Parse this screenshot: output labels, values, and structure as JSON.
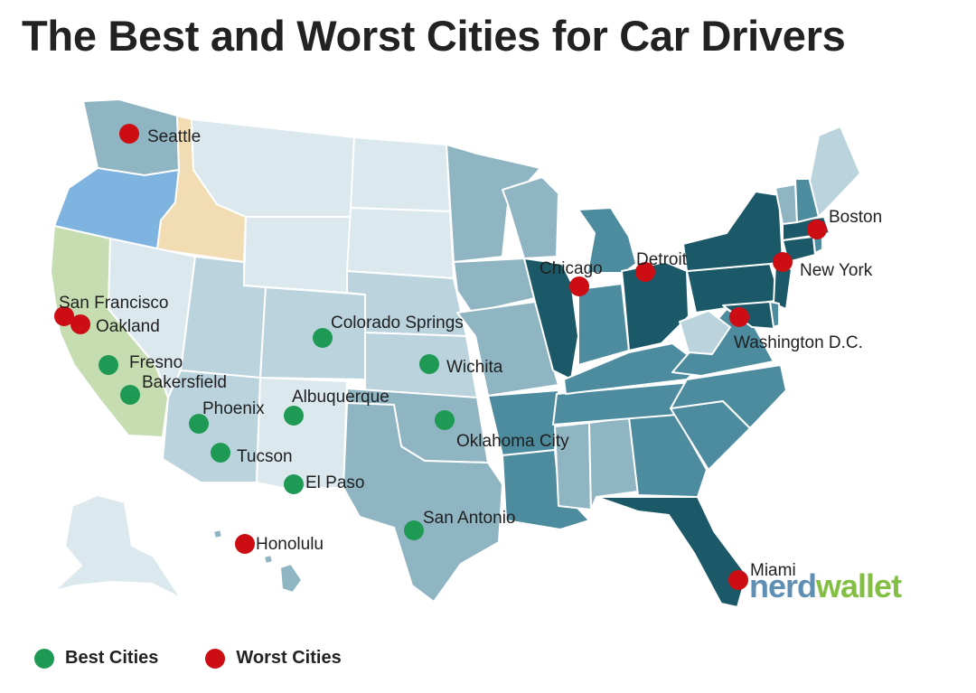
{
  "title": "The Best and Worst Cities for Car Drivers",
  "colors": {
    "best": "#1f9a55",
    "worst": "#cc0d14",
    "shade_lightest": "#dbe8ee",
    "shade_light": "#bad3dd",
    "shade_mid": "#8fb4c2",
    "shade_dark": "#4d8b9e",
    "shade_darkest": "#1c5968",
    "oregon": "#7fb3e0",
    "idaho": "#f2dcb3",
    "california": "#c6ddb2"
  },
  "cities": [
    {
      "name": "Seattle",
      "type": "worst"
    },
    {
      "name": "San Francisco",
      "type": "worst"
    },
    {
      "name": "Oakland",
      "type": "worst"
    },
    {
      "name": "Fresno",
      "type": "best"
    },
    {
      "name": "Bakersfield",
      "type": "best"
    },
    {
      "name": "Phoenix",
      "type": "best"
    },
    {
      "name": "Tucson",
      "type": "best"
    },
    {
      "name": "Albuquerque",
      "type": "best"
    },
    {
      "name": "El Paso",
      "type": "best"
    },
    {
      "name": "Colorado Springs",
      "type": "best"
    },
    {
      "name": "Wichita",
      "type": "best"
    },
    {
      "name": "Oklahoma City",
      "type": "best"
    },
    {
      "name": "San Antonio",
      "type": "best"
    },
    {
      "name": "Honolulu",
      "type": "worst"
    },
    {
      "name": "Chicago",
      "type": "worst"
    },
    {
      "name": "Detroit",
      "type": "worst"
    },
    {
      "name": "Boston",
      "type": "worst"
    },
    {
      "name": "New York",
      "type": "worst"
    },
    {
      "name": "Washington D.C.",
      "type": "worst"
    },
    {
      "name": "Miami",
      "type": "worst"
    }
  ],
  "legend": {
    "best_label": "Best Cities",
    "worst_label": "Worst Cities"
  },
  "logo": {
    "part1": "nerd",
    "part2": "wallet"
  }
}
